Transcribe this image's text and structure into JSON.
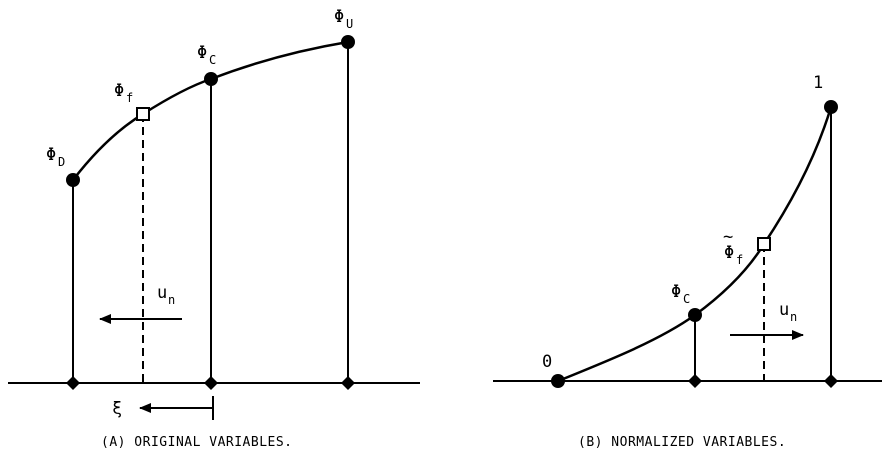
{
  "panel_a": {
    "caption": "(A) ORIGINAL VARIABLES.",
    "labels": {
      "phi_d_main": "Φ",
      "phi_d_sub": "D",
      "phi_f_main": "Φ",
      "phi_f_sub": "f",
      "phi_c_main": "Φ",
      "phi_c_sub": "C",
      "phi_u_main": "Φ",
      "phi_u_sub": "U",
      "un_main": "u",
      "un_sub": "n",
      "xi": "ξ"
    }
  },
  "panel_b": {
    "caption": "(B) NORMALIZED VARIABLES.",
    "labels": {
      "zero": "0",
      "one": "1",
      "phi_c_main": "Φ",
      "phi_c_sub": "C",
      "phi_f_main": "Φ",
      "phi_f_sub": "f",
      "phi_f_tilde": "~",
      "un_main": "u",
      "un_sub": "n"
    }
  }
}
